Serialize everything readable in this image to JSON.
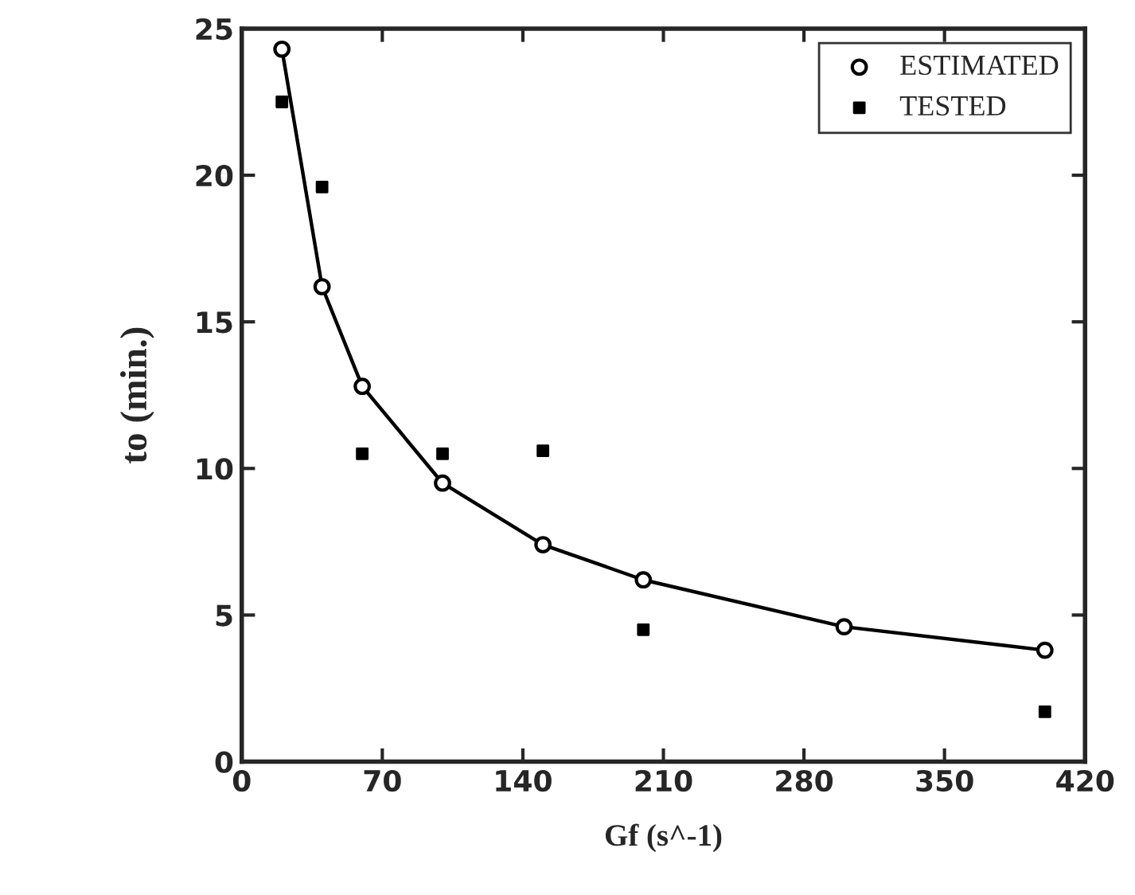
{
  "chart_data": {
    "type": "scatter",
    "xlabel": "Gf (s^-1)",
    "ylabel": "to (min.)",
    "xlim": [
      0,
      420
    ],
    "ylim": [
      0,
      25
    ],
    "xticks": [
      0,
      70,
      140,
      210,
      280,
      350,
      420
    ],
    "yticks": [
      0,
      5,
      10,
      15,
      20,
      25
    ],
    "legend": "top right",
    "grid": false,
    "series": [
      {
        "type": "line",
        "color": "#000000",
        "marker": "none",
        "x": [
          20,
          40,
          60,
          100,
          150,
          200,
          300,
          400
        ],
        "values": [
          24.3,
          16.2,
          12.8,
          9.5,
          7.4,
          6.2,
          4.6,
          3.8
        ]
      },
      {
        "name": "ESTIMATED",
        "color": "#000000",
        "marker": "circle",
        "x": [
          20,
          40,
          60,
          100,
          150,
          200,
          300,
          400
        ],
        "values": [
          24.3,
          16.2,
          12.8,
          9.5,
          7.4,
          6.2,
          4.6,
          3.8
        ]
      },
      {
        "name": "TESTED",
        "color": "#000000",
        "marker": "square",
        "x": [
          20,
          40,
          60,
          100,
          150,
          200,
          400
        ],
        "values": [
          22.5,
          19.6,
          10.5,
          10.5,
          10.6,
          4.5,
          1.7
        ]
      }
    ]
  }
}
